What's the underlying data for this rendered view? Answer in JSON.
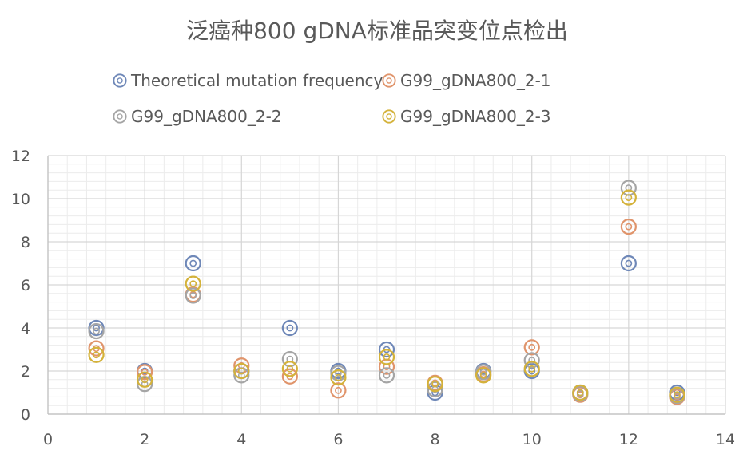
{
  "chart_data": {
    "type": "scatter",
    "title": "泛癌种800 gDNA标准品突变位点检出",
    "xlabel": "",
    "ylabel": "",
    "xlim": [
      0,
      14
    ],
    "ylim": [
      0,
      12
    ],
    "x_ticks": [
      "0",
      "2",
      "4",
      "6",
      "8",
      "10",
      "12",
      "14"
    ],
    "y_ticks": [
      "0",
      "2",
      "4",
      "6",
      "8",
      "10",
      "12"
    ],
    "grid": true,
    "legend_position": "top",
    "series": [
      {
        "name": "Theoretical mutation frequency",
        "color": "#6f88b8",
        "points": [
          [
            1,
            4
          ],
          [
            2,
            2
          ],
          [
            3,
            7
          ],
          [
            4,
            2
          ],
          [
            5,
            4
          ],
          [
            6,
            2
          ],
          [
            7,
            3
          ],
          [
            8,
            1
          ],
          [
            9,
            2
          ],
          [
            10,
            2
          ],
          [
            11,
            1
          ],
          [
            12,
            7
          ],
          [
            13,
            1
          ]
        ]
      },
      {
        "name": "G99_gDNA800_2-1",
        "color": "#e0946b",
        "points": [
          [
            1,
            3.05
          ],
          [
            2,
            1.95
          ],
          [
            3,
            5.55
          ],
          [
            4,
            2.25
          ],
          [
            5,
            1.75
          ],
          [
            6,
            1.1
          ],
          [
            7,
            2.2
          ],
          [
            8,
            1.45
          ],
          [
            9,
            1.85
          ],
          [
            10,
            3.1
          ],
          [
            11,
            0.9
          ],
          [
            12,
            8.7
          ],
          [
            13,
            0.8
          ]
        ]
      },
      {
        "name": "G99_gDNA800_2-2",
        "color": "#a5a5a5",
        "points": [
          [
            1,
            3.85
          ],
          [
            2,
            1.4
          ],
          [
            3,
            5.5
          ],
          [
            4,
            1.8
          ],
          [
            5,
            2.55
          ],
          [
            6,
            1.9
          ],
          [
            7,
            1.8
          ],
          [
            8,
            1.15
          ],
          [
            9,
            1.95
          ],
          [
            10,
            2.5
          ],
          [
            11,
            0.95
          ],
          [
            12,
            10.5
          ],
          [
            13,
            0.85
          ]
        ]
      },
      {
        "name": "G99_gDNA800_2-3",
        "color": "#d4b23a",
        "points": [
          [
            1,
            2.75
          ],
          [
            2,
            1.6
          ],
          [
            3,
            6.05
          ],
          [
            4,
            2.0
          ],
          [
            5,
            2.1
          ],
          [
            6,
            1.7
          ],
          [
            7,
            2.65
          ],
          [
            8,
            1.4
          ],
          [
            9,
            1.8
          ],
          [
            10,
            2.1
          ],
          [
            11,
            1.0
          ],
          [
            12,
            10.05
          ],
          [
            13,
            0.9
          ]
        ]
      }
    ]
  }
}
